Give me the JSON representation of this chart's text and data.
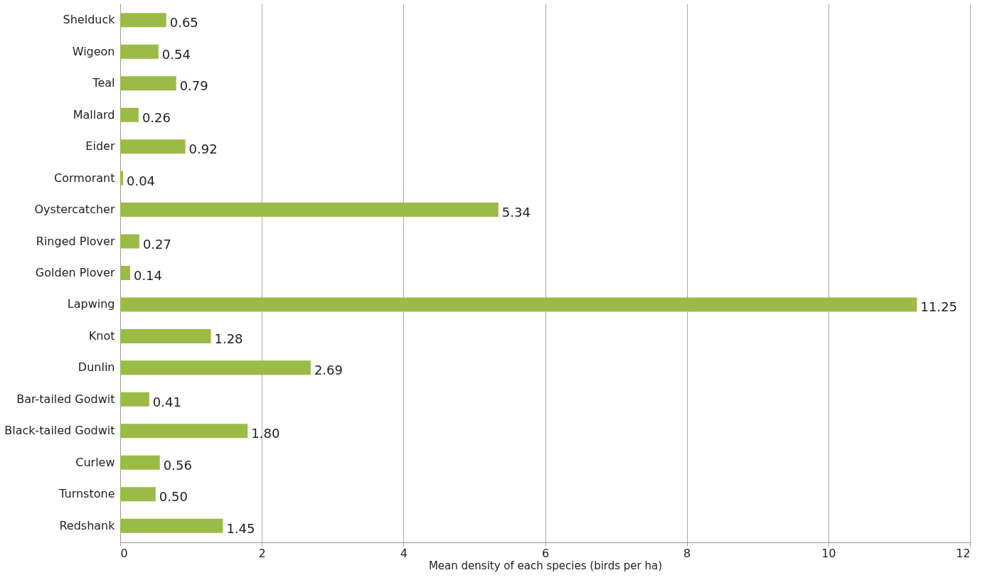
{
  "chart_data": {
    "type": "bar",
    "orientation": "horizontal",
    "xlabel": "Mean density of each species (birds per ha)",
    "categories": [
      "Shelduck",
      "Wigeon",
      "Teal",
      "Mallard",
      "Eider",
      "Cormorant",
      "Oystercatcher",
      "Ringed Plover",
      "Golden Plover",
      "Lapwing",
      "Knot",
      "Dunlin",
      "Bar-tailed Godwit",
      "Black-tailed Godwit",
      "Curlew",
      "Turnstone",
      "Redshank"
    ],
    "values": [
      0.65,
      0.54,
      0.79,
      0.26,
      0.92,
      0.04,
      5.34,
      0.27,
      0.14,
      11.25,
      1.28,
      2.69,
      0.41,
      1.8,
      0.56,
      0.5,
      1.45
    ],
    "value_labels": [
      "0.65",
      "0.54",
      "0.79",
      "0.26",
      "0.92",
      "0.04",
      "5.34",
      "0.27",
      "0.14",
      "11.25",
      "1.28",
      "2.69",
      "0.41",
      "1.80",
      "0.56",
      "0.50",
      "1.45"
    ],
    "color": "#9bbb47",
    "xlim": [
      0,
      12
    ],
    "xticks": [
      0,
      2,
      4,
      6,
      8,
      10,
      12
    ],
    "grid": "x"
  }
}
